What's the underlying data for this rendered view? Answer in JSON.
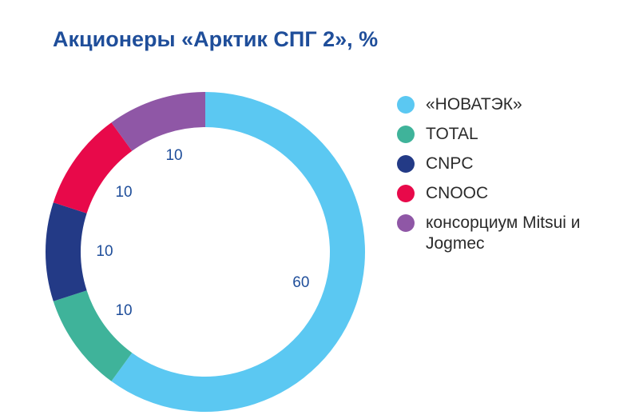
{
  "chart_data": {
    "type": "pie",
    "title": "Акционеры «Арктик СПГ 2», %",
    "categories": [
      "«НОВАТЭК»",
      "TOTAL",
      "CNPC",
      "CNOOC",
      "консорциум Mitsui и Jogmec"
    ],
    "values": [
      60,
      10,
      10,
      10,
      10
    ],
    "data_labels": [
      "60",
      "10",
      "10",
      "10",
      "10"
    ],
    "colors": [
      "#5bc8f2",
      "#3fb39a",
      "#233a86",
      "#e8094a",
      "#8f57a6"
    ],
    "legend_position": "right",
    "style": "donut"
  }
}
